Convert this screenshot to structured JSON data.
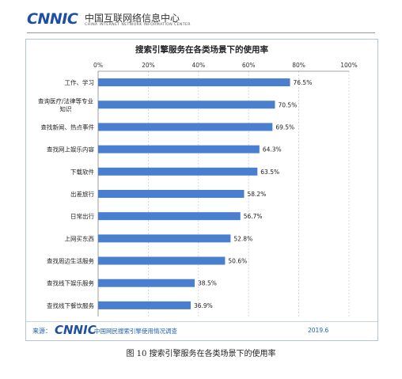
{
  "header": {
    "logo_text": "CNNIC",
    "org_name_cn": "中国互联网络信息中心",
    "org_name_en": "CHINA INTERNET NETWORK INFORMATION CENTER"
  },
  "chart_data": {
    "type": "bar",
    "orientation": "horizontal",
    "title": "搜索引擎服务在各类场景下的使用率",
    "categories": [
      "工作、学习",
      "查询医疗/法律等专业知识",
      "查找新闻、热点事件",
      "查找网上娱乐内容",
      "下载软件",
      "出差旅行",
      "日常出行",
      "上网买东西",
      "查找周边生活服务",
      "查找线下娱乐服务",
      "查找线下餐饮服务"
    ],
    "category_lines": [
      [
        "工作、学习"
      ],
      [
        "查询医疗/法律等专业",
        "知识"
      ],
      [
        "查找新闻、热点事件"
      ],
      [
        "查找网上娱乐内容"
      ],
      [
        "下载软件"
      ],
      [
        "出差旅行"
      ],
      [
        "日常出行"
      ],
      [
        "上网买东西"
      ],
      [
        "查找周边生活服务"
      ],
      [
        "查找线下娱乐服务"
      ],
      [
        "查找线下餐饮服务"
      ]
    ],
    "values": [
      76.5,
      70.5,
      69.5,
      64.3,
      63.5,
      58.2,
      56.7,
      52.8,
      50.6,
      38.5,
      36.9
    ],
    "value_labels": [
      "76.5%",
      "70.5%",
      "69.5%",
      "64.3%",
      "63.5%",
      "58.2%",
      "56.7%",
      "52.8%",
      "50.6%",
      "38.5%",
      "36.9%"
    ],
    "xlim": [
      0,
      100
    ],
    "ticks": [
      0,
      20,
      40,
      60,
      80,
      100
    ],
    "tick_labels": [
      "0%",
      "20%",
      "40%",
      "60%",
      "80%",
      "100%"
    ],
    "axis_position": "top",
    "grid": true,
    "bar_color": "#4a7fd0"
  },
  "source": {
    "label": "来源：",
    "logo_text": "CNNIC",
    "text": "中国网民搜索引擎使用情况调查",
    "year": "2019.6"
  },
  "caption": "图 10 搜索引擎服务在各类场景下的使用率"
}
